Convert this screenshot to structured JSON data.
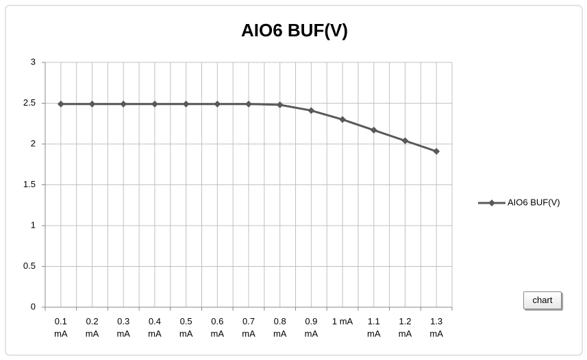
{
  "chart_data": {
    "type": "line",
    "title": "AIO6 BUF(V)",
    "categories": [
      "0.1 mA",
      "0.2 mA",
      "0.3 mA",
      "0.4 mA",
      "0.5 mA",
      "0.6 mA",
      "0.7 mA",
      "0.8 mA",
      "0.9 mA",
      "1 mA",
      "1.1 mA",
      "1.2 mA",
      "1.3 mA"
    ],
    "series": [
      {
        "name": "AIO6 BUF(V)",
        "color": "#595959",
        "values": [
          2.49,
          2.49,
          2.49,
          2.49,
          2.49,
          2.49,
          2.49,
          2.48,
          2.41,
          2.3,
          2.17,
          2.04,
          1.91
        ]
      }
    ],
    "ylim": [
      0,
      3
    ],
    "yticks": [
      0,
      0.5,
      1,
      1.5,
      2,
      2.5,
      3
    ],
    "grid": true,
    "legend": "right"
  },
  "button": "chart"
}
